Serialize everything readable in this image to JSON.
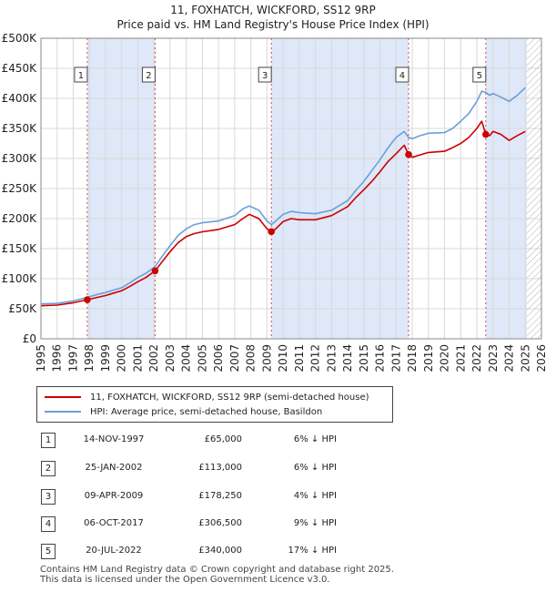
{
  "title_line1": "11, FOXHATCH, WICKFORD, SS12 9RP",
  "title_line2": "Price paid vs. HM Land Registry's House Price Index (HPI)",
  "colors": {
    "red": "#cc0000",
    "blue": "#6a9fd8",
    "band": "#dfe8f8",
    "hatch": "#aab2c0"
  },
  "chart_data": {
    "type": "line",
    "xlim": [
      1995,
      2026
    ],
    "ylim": [
      0,
      500000
    ],
    "yticks": [
      0,
      50000,
      100000,
      150000,
      200000,
      250000,
      300000,
      350000,
      400000,
      450000,
      500000
    ],
    "ytick_labels": [
      "£0",
      "£50K",
      "£100K",
      "£150K",
      "£200K",
      "£250K",
      "£300K",
      "£350K",
      "£400K",
      "£450K",
      "£500K"
    ],
    "xticks": [
      "1995",
      "1996",
      "1997",
      "1998",
      "1999",
      "2000",
      "2001",
      "2002",
      "2003",
      "2004",
      "2005",
      "2006",
      "2007",
      "2008",
      "2009",
      "2010",
      "2011",
      "2012",
      "2013",
      "2014",
      "2015",
      "2016",
      "2017",
      "2018",
      "2019",
      "2020",
      "2021",
      "2022",
      "2023",
      "2024",
      "2025",
      "2026"
    ],
    "data_end": 2025.1,
    "series": [
      {
        "name": "11, FOXHATCH, WICKFORD, SS12 9RP (semi-detached house)",
        "x": [
          1995,
          1996,
          1997,
          1997.87,
          1998.5,
          1999,
          1999.5,
          2000,
          2000.5,
          2001,
          2001.5,
          2002.07,
          2002.5,
          2003,
          2003.5,
          2004,
          2004.5,
          2005,
          2006,
          2007,
          2007.5,
          2007.9,
          2008.5,
          2009.0,
          2009.27,
          2009.5,
          2010,
          2010.5,
          2011,
          2012,
          2013,
          2014,
          2014.5,
          2015,
          2015.5,
          2016,
          2016.5,
          2017,
          2017.5,
          2017.77,
          2018,
          2018.5,
          2019,
          2020,
          2020.5,
          2021,
          2021.5,
          2022,
          2022.3,
          2022.55,
          2022.8,
          2023,
          2023.5,
          2024,
          2024.5,
          2025.0
        ],
        "values": [
          55000,
          56000,
          60000,
          65000,
          69000,
          72000,
          76000,
          80000,
          87000,
          95000,
          102000,
          113000,
          128000,
          145000,
          160000,
          170000,
          175000,
          178000,
          182000,
          190000,
          200000,
          207000,
          200000,
          183000,
          178250,
          182000,
          195000,
          200000,
          198000,
          198000,
          205000,
          220000,
          235000,
          248000,
          262000,
          278000,
          295000,
          308000,
          322000,
          306500,
          302000,
          306000,
          310000,
          312000,
          318000,
          325000,
          335000,
          350000,
          362000,
          340000,
          338000,
          345000,
          340000,
          330000,
          338000,
          345000
        ]
      },
      {
        "name": "HPI: Average price, semi-detached house, Basildon",
        "x": [
          1995,
          1996,
          1997,
          1997.87,
          1998.5,
          1999,
          1999.5,
          2000,
          2000.5,
          2001,
          2001.5,
          2002.07,
          2002.5,
          2003,
          2003.5,
          2004,
          2004.5,
          2005,
          2006,
          2007,
          2007.5,
          2007.9,
          2008.5,
          2009.0,
          2009.27,
          2009.5,
          2010,
          2010.5,
          2011,
          2012,
          2013,
          2014,
          2014.5,
          2015,
          2015.5,
          2016,
          2016.5,
          2017,
          2017.5,
          2017.77,
          2018,
          2018.5,
          2019,
          2020,
          2020.5,
          2021,
          2021.5,
          2022,
          2022.3,
          2022.55,
          2022.8,
          2023,
          2023.5,
          2024,
          2024.5,
          2025.0
        ],
        "values": [
          58000,
          59000,
          63000,
          69000,
          74000,
          77000,
          81000,
          85000,
          93000,
          102000,
          109000,
          120000,
          137000,
          155000,
          172000,
          183000,
          190000,
          193000,
          196000,
          205000,
          216000,
          221000,
          214000,
          196000,
          190000,
          195000,
          207000,
          212000,
          210000,
          208000,
          214000,
          230000,
          247000,
          262000,
          280000,
          298000,
          318000,
          335000,
          345000,
          335000,
          333000,
          338000,
          342000,
          343000,
          350000,
          362000,
          375000,
          395000,
          412000,
          410000,
          405000,
          408000,
          402000,
          395000,
          405000,
          418000
        ]
      }
    ],
    "transactions": [
      {
        "label": "1",
        "x": 1997.87,
        "value": 65000
      },
      {
        "label": "2",
        "x": 2002.07,
        "value": 113000
      },
      {
        "label": "3",
        "x": 2009.27,
        "value": 178250
      },
      {
        "label": "4",
        "x": 2017.77,
        "value": 306500
      },
      {
        "label": "5",
        "x": 2022.55,
        "value": 340000
      }
    ]
  },
  "legend": {
    "red_label": "11, FOXHATCH, WICKFORD, SS12 9RP (semi-detached house)",
    "blue_label": "HPI: Average price, semi-detached house, Basildon"
  },
  "table": [
    {
      "num": "1",
      "date": "14-NOV-1997",
      "price": "£65,000",
      "hpi": "6% ↓ HPI"
    },
    {
      "num": "2",
      "date": "25-JAN-2002",
      "price": "£113,000",
      "hpi": "6% ↓ HPI"
    },
    {
      "num": "3",
      "date": "09-APR-2009",
      "price": "£178,250",
      "hpi": "4% ↓ HPI"
    },
    {
      "num": "4",
      "date": "06-OCT-2017",
      "price": "£306,500",
      "hpi": "9% ↓ HPI"
    },
    {
      "num": "5",
      "date": "20-JUL-2022",
      "price": "£340,000",
      "hpi": "17% ↓ HPI"
    }
  ],
  "footer_line1": "Contains HM Land Registry data © Crown copyright and database right 2025.",
  "footer_line2": "This data is licensed under the Open Government Licence v3.0."
}
